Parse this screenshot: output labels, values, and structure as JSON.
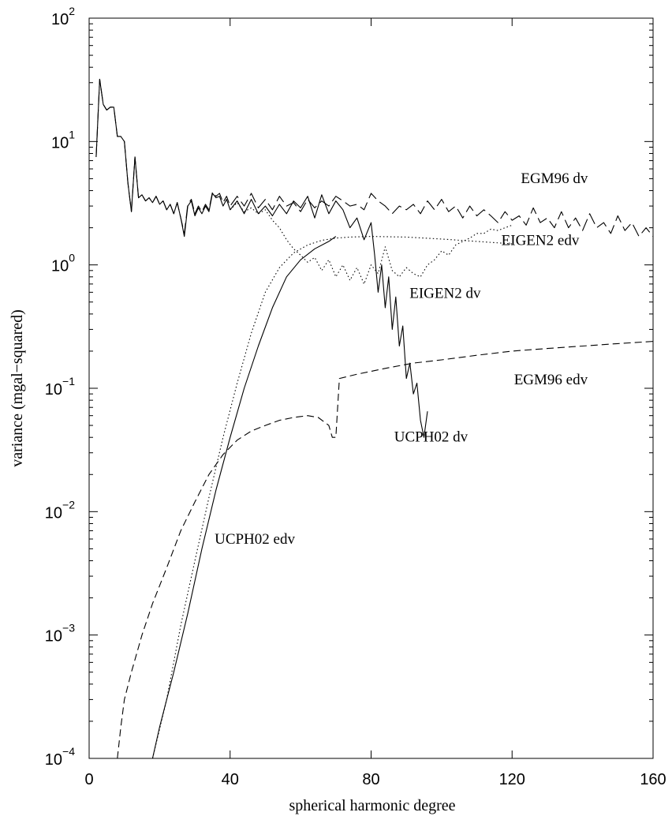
{
  "chart_data": {
    "type": "line",
    "title": "",
    "xlabel": "spherical harmonic degree",
    "ylabel": "variance (mgal−squared)",
    "xlim": [
      0,
      160
    ],
    "ylim": [
      0.0001,
      100
    ],
    "yscale": "log",
    "grid": false,
    "legend": "inline labels",
    "x_ticks": [
      {
        "value": 0,
        "label": "0"
      },
      {
        "value": 40,
        "label": "40"
      },
      {
        "value": 80,
        "label": "80"
      },
      {
        "value": 120,
        "label": "120"
      },
      {
        "value": 160,
        "label": "160"
      }
    ],
    "y_ticks": [
      {
        "value": 0.0001,
        "base": "10",
        "exp": "−4"
      },
      {
        "value": 0.001,
        "base": "10",
        "exp": "−3"
      },
      {
        "value": 0.01,
        "base": "10",
        "exp": "−2"
      },
      {
        "value": 0.1,
        "base": "10",
        "exp": "−1"
      },
      {
        "value": 1,
        "base": "10",
        "exp": "0"
      },
      {
        "value": 10,
        "base": "10",
        "exp": "1"
      },
      {
        "value": 100,
        "base": "10",
        "exp": "2"
      }
    ],
    "series": [
      {
        "name": "EGM96 dv",
        "style": "longdash",
        "color": "#000000",
        "points": [
          [
            2,
            7.5
          ],
          [
            3,
            32
          ],
          [
            4,
            20
          ],
          [
            5,
            18
          ],
          [
            6,
            19
          ],
          [
            7,
            19
          ],
          [
            8,
            11
          ],
          [
            9,
            11
          ],
          [
            10,
            10
          ],
          [
            11,
            4.6
          ],
          [
            12,
            2.7
          ],
          [
            13,
            7.5
          ],
          [
            14,
            3.5
          ],
          [
            15,
            3.7
          ],
          [
            16,
            3.3
          ],
          [
            17,
            3.5
          ],
          [
            18,
            3.2
          ],
          [
            19,
            3.6
          ],
          [
            20,
            3.1
          ],
          [
            21,
            3.3
          ],
          [
            22,
            2.8
          ],
          [
            23,
            3.1
          ],
          [
            24,
            2.6
          ],
          [
            25,
            3.2
          ],
          [
            26,
            2.4
          ],
          [
            27,
            1.8
          ],
          [
            28,
            3.1
          ],
          [
            29,
            3.4
          ],
          [
            30,
            2.6
          ],
          [
            31,
            3.0
          ],
          [
            32,
            2.7
          ],
          [
            33,
            3.1
          ],
          [
            34,
            2.8
          ],
          [
            35,
            3.9
          ],
          [
            36,
            3.6
          ],
          [
            37,
            3.8
          ],
          [
            38,
            3.2
          ],
          [
            39,
            3.6
          ],
          [
            40,
            3.0
          ],
          [
            42,
            3.6
          ],
          [
            44,
            3.0
          ],
          [
            46,
            3.8
          ],
          [
            48,
            2.9
          ],
          [
            50,
            3.4
          ],
          [
            52,
            2.8
          ],
          [
            54,
            3.6
          ],
          [
            56,
            3.0
          ],
          [
            58,
            3.2
          ],
          [
            60,
            2.7
          ],
          [
            62,
            3.4
          ],
          [
            64,
            2.9
          ],
          [
            66,
            3.3
          ],
          [
            68,
            3.0
          ],
          [
            70,
            3.6
          ],
          [
            72,
            3.3
          ],
          [
            74,
            3.0
          ],
          [
            76,
            3.1
          ],
          [
            78,
            2.8
          ],
          [
            80,
            3.8
          ],
          [
            82,
            3.3
          ],
          [
            84,
            3.0
          ],
          [
            86,
            2.6
          ],
          [
            88,
            3.0
          ],
          [
            90,
            2.8
          ],
          [
            92,
            3.1
          ],
          [
            94,
            2.6
          ],
          [
            96,
            3.3
          ],
          [
            98,
            2.8
          ],
          [
            100,
            3.4
          ],
          [
            102,
            2.7
          ],
          [
            104,
            3.0
          ],
          [
            106,
            2.4
          ],
          [
            108,
            3.0
          ],
          [
            110,
            2.5
          ],
          [
            112,
            2.8
          ],
          [
            114,
            2.5
          ],
          [
            116,
            2.2
          ],
          [
            118,
            2.7
          ],
          [
            120,
            2.3
          ],
          [
            122,
            2.5
          ],
          [
            124,
            2.1
          ],
          [
            126,
            2.9
          ],
          [
            128,
            2.2
          ],
          [
            130,
            2.4
          ],
          [
            132,
            2.0
          ],
          [
            134,
            2.7
          ],
          [
            136,
            2.0
          ],
          [
            138,
            2.4
          ],
          [
            140,
            1.9
          ],
          [
            142,
            2.6
          ],
          [
            144,
            2.0
          ],
          [
            146,
            2.2
          ],
          [
            148,
            1.8
          ],
          [
            150,
            2.5
          ],
          [
            152,
            1.9
          ],
          [
            154,
            2.2
          ],
          [
            156,
            1.7
          ],
          [
            158,
            2.0
          ],
          [
            160,
            1.7
          ]
        ]
      },
      {
        "name": "EIGEN2 edv",
        "style": "dotted",
        "color": "#000000",
        "points": [
          [
            18,
            9e-05
          ],
          [
            22,
            0.0003
          ],
          [
            26,
            0.0012
          ],
          [
            30,
            0.004
          ],
          [
            34,
            0.013
          ],
          [
            38,
            0.04
          ],
          [
            42,
            0.11
          ],
          [
            46,
            0.28
          ],
          [
            50,
            0.6
          ],
          [
            54,
            0.95
          ],
          [
            58,
            1.25
          ],
          [
            62,
            1.45
          ],
          [
            66,
            1.58
          ],
          [
            70,
            1.65
          ],
          [
            74,
            1.68
          ],
          [
            80,
            1.7
          ],
          [
            90,
            1.68
          ],
          [
            100,
            1.62
          ],
          [
            110,
            1.55
          ],
          [
            120,
            1.48
          ]
        ]
      },
      {
        "name": "EIGEN2 dv",
        "style": "dotted",
        "color": "#000000",
        "points": [
          [
            40,
            2.8
          ],
          [
            42,
            3.2
          ],
          [
            44,
            2.7
          ],
          [
            46,
            2.9
          ],
          [
            48,
            2.6
          ],
          [
            50,
            2.8
          ],
          [
            52,
            2.3
          ],
          [
            54,
            2.0
          ],
          [
            56,
            1.6
          ],
          [
            58,
            1.35
          ],
          [
            60,
            1.2
          ],
          [
            62,
            1.05
          ],
          [
            64,
            1.15
          ],
          [
            66,
            0.9
          ],
          [
            68,
            1.1
          ],
          [
            70,
            0.8
          ],
          [
            72,
            1.0
          ],
          [
            74,
            0.75
          ],
          [
            76,
            0.95
          ],
          [
            78,
            0.7
          ],
          [
            80,
            1.0
          ],
          [
            82,
            0.85
          ],
          [
            84,
            1.4
          ],
          [
            86,
            0.9
          ],
          [
            88,
            0.8
          ],
          [
            90,
            0.95
          ],
          [
            92,
            0.85
          ],
          [
            94,
            0.8
          ],
          [
            96,
            1.0
          ],
          [
            98,
            1.1
          ],
          [
            100,
            1.3
          ],
          [
            102,
            1.2
          ],
          [
            104,
            1.45
          ],
          [
            106,
            1.55
          ],
          [
            108,
            1.65
          ],
          [
            110,
            1.8
          ],
          [
            112,
            1.8
          ],
          [
            114,
            1.95
          ],
          [
            116,
            1.9
          ],
          [
            118,
            2.0
          ],
          [
            120,
            2.1
          ]
        ]
      },
      {
        "name": "UCPH02 edv",
        "style": "solid",
        "color": "#000000",
        "points": [
          [
            18,
            0.0001
          ],
          [
            20,
            0.00018
          ],
          [
            24,
            0.0005
          ],
          [
            28,
            0.0015
          ],
          [
            32,
            0.005
          ],
          [
            36,
            0.015
          ],
          [
            40,
            0.04
          ],
          [
            44,
            0.1
          ],
          [
            48,
            0.22
          ],
          [
            52,
            0.45
          ],
          [
            56,
            0.8
          ],
          [
            60,
            1.1
          ],
          [
            64,
            1.35
          ],
          [
            68,
            1.55
          ],
          [
            70,
            1.7
          ]
        ]
      },
      {
        "name": "UCPH02 dv",
        "style": "solid",
        "color": "#000000",
        "points": [
          [
            2,
            7.5
          ],
          [
            3,
            32
          ],
          [
            4,
            20
          ],
          [
            5,
            18
          ],
          [
            6,
            19
          ],
          [
            7,
            19
          ],
          [
            8,
            11
          ],
          [
            9,
            11
          ],
          [
            10,
            10
          ],
          [
            11,
            4.6
          ],
          [
            12,
            2.7
          ],
          [
            13,
            7.5
          ],
          [
            14,
            3.5
          ],
          [
            15,
            3.7
          ],
          [
            16,
            3.3
          ],
          [
            17,
            3.5
          ],
          [
            18,
            3.2
          ],
          [
            19,
            3.6
          ],
          [
            20,
            3.1
          ],
          [
            21,
            3.3
          ],
          [
            22,
            2.8
          ],
          [
            23,
            3.1
          ],
          [
            24,
            2.6
          ],
          [
            25,
            3.2
          ],
          [
            26,
            2.4
          ],
          [
            27,
            1.7
          ],
          [
            28,
            3.0
          ],
          [
            29,
            3.3
          ],
          [
            30,
            2.5
          ],
          [
            31,
            2.9
          ],
          [
            32,
            2.6
          ],
          [
            33,
            3.0
          ],
          [
            34,
            2.7
          ],
          [
            35,
            3.8
          ],
          [
            36,
            3.5
          ],
          [
            37,
            3.6
          ],
          [
            38,
            3.0
          ],
          [
            39,
            3.4
          ],
          [
            40,
            2.8
          ],
          [
            42,
            3.3
          ],
          [
            44,
            2.6
          ],
          [
            46,
            3.4
          ],
          [
            48,
            2.6
          ],
          [
            50,
            3.0
          ],
          [
            52,
            2.5
          ],
          [
            54,
            3.1
          ],
          [
            56,
            2.6
          ],
          [
            58,
            3.3
          ],
          [
            60,
            2.9
          ],
          [
            62,
            3.6
          ],
          [
            64,
            2.4
          ],
          [
            66,
            3.7
          ],
          [
            68,
            2.6
          ],
          [
            70,
            3.3
          ],
          [
            72,
            2.8
          ],
          [
            74,
            2.0
          ],
          [
            76,
            2.4
          ],
          [
            78,
            1.6
          ],
          [
            80,
            2.2
          ],
          [
            81,
            1.2
          ],
          [
            82,
            0.6
          ],
          [
            83,
            1.0
          ],
          [
            84,
            0.45
          ],
          [
            85,
            0.8
          ],
          [
            86,
            0.3
          ],
          [
            87,
            0.55
          ],
          [
            88,
            0.22
          ],
          [
            89,
            0.32
          ],
          [
            90,
            0.12
          ],
          [
            91,
            0.16
          ],
          [
            92,
            0.09
          ],
          [
            93,
            0.11
          ],
          [
            94,
            0.055
          ],
          [
            95,
            0.04
          ],
          [
            96,
            0.065
          ]
        ]
      },
      {
        "name": "EGM96 edv",
        "style": "dashed",
        "color": "#000000",
        "points": [
          [
            8,
            0.0001
          ],
          [
            9,
            0.00018
          ],
          [
            10,
            0.0003
          ],
          [
            12,
            0.0005
          ],
          [
            15,
            0.001
          ],
          [
            18,
            0.0018
          ],
          [
            22,
            0.0035
          ],
          [
            26,
            0.007
          ],
          [
            30,
            0.012
          ],
          [
            34,
            0.02
          ],
          [
            38,
            0.029
          ],
          [
            42,
            0.038
          ],
          [
            46,
            0.045
          ],
          [
            50,
            0.05
          ],
          [
            54,
            0.055
          ],
          [
            58,
            0.058
          ],
          [
            62,
            0.06
          ],
          [
            65,
            0.058
          ],
          [
            68,
            0.05
          ],
          [
            69,
            0.04
          ],
          [
            70,
            0.04
          ],
          [
            71,
            0.12
          ],
          [
            76,
            0.13
          ],
          [
            84,
            0.145
          ],
          [
            92,
            0.16
          ],
          [
            100,
            0.17
          ],
          [
            110,
            0.185
          ],
          [
            120,
            0.2
          ],
          [
            130,
            0.21
          ],
          [
            140,
            0.22
          ],
          [
            150,
            0.23
          ],
          [
            160,
            0.24
          ]
        ]
      }
    ],
    "annotations": [
      {
        "text": "EGM96 dv",
        "x": 132,
        "y": 4.6
      },
      {
        "text": "EIGEN2 edv",
        "x": 128,
        "y": 1.45
      },
      {
        "text": "EIGEN2 dv",
        "x": 101,
        "y": 0.54
      },
      {
        "text": "EGM96 edv",
        "x": 131,
        "y": 0.108
      },
      {
        "text": "UCPH02 dv",
        "x": 97,
        "y": 0.037
      },
      {
        "text": "UCPH02 edv",
        "x": 47,
        "y": 0.0055
      }
    ]
  }
}
